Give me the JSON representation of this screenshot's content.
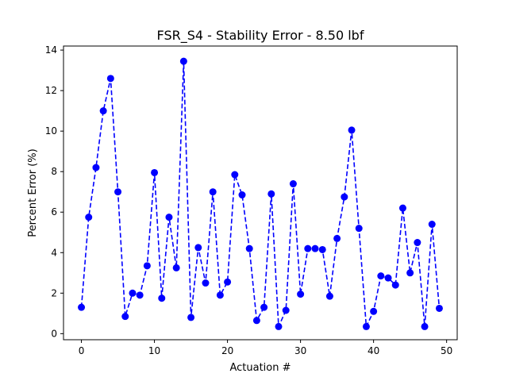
{
  "chart_data": {
    "type": "line",
    "title": "FSR_S4 - Stability Error - 8.50 lbf",
    "xlabel": "Actuation #",
    "ylabel": "Percent Error (%)",
    "xlim": [
      -2.45,
      51.45
    ],
    "ylim": [
      -0.3,
      14.2
    ],
    "xticks": [
      0,
      10,
      20,
      30,
      40,
      50
    ],
    "yticks": [
      0,
      2,
      4,
      6,
      8,
      10,
      12,
      14
    ],
    "grid": false,
    "line_style": "dashed",
    "marker": "circle",
    "color": "#0000ff",
    "x": [
      0,
      1,
      2,
      3,
      4,
      5,
      6,
      7,
      8,
      9,
      10,
      11,
      12,
      13,
      14,
      15,
      16,
      17,
      18,
      19,
      20,
      21,
      22,
      23,
      24,
      25,
      26,
      27,
      28,
      29,
      30,
      31,
      32,
      33,
      34,
      35,
      36,
      37,
      38,
      39,
      40,
      41,
      42,
      43,
      44,
      45,
      46,
      47,
      48,
      49
    ],
    "series": [
      {
        "values": [
          1.3,
          5.75,
          8.2,
          11.0,
          12.6,
          7.0,
          0.85,
          2.0,
          1.9,
          3.35,
          7.95,
          1.75,
          5.75,
          3.25,
          13.45,
          0.8,
          4.25,
          2.5,
          7.0,
          1.9,
          2.55,
          7.85,
          6.85,
          4.2,
          0.65,
          1.3,
          6.9,
          0.35,
          1.15,
          7.4,
          1.95,
          4.2,
          4.2,
          4.15,
          1.85,
          4.7,
          6.75,
          10.05,
          5.2,
          0.35,
          1.1,
          2.85,
          2.75,
          2.4,
          6.2,
          3.0,
          4.5,
          0.35,
          5.4,
          1.25
        ]
      }
    ]
  }
}
